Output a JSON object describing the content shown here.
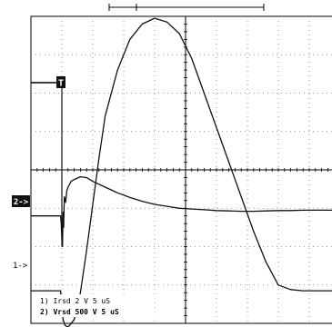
{
  "chart_data": {
    "type": "line",
    "title": "",
    "grid": true,
    "x_unit": "us",
    "x_per_div": 5,
    "x_range": [
      0,
      50
    ],
    "y_range_div": [
      -4,
      4
    ],
    "markers": {
      "trigger": "T",
      "channel_2": "2->",
      "channel_1": "1->"
    },
    "legend": [
      {
        "label": "1) Irsd  2  V    5 uS"
      },
      {
        "label": "2) Vrsd  500  V    5 uS"
      }
    ],
    "series": [
      {
        "name": "1) Irsd",
        "x": [
          0,
          4.8,
          4.9,
          5.0,
          5.2,
          5.5,
          6,
          7,
          8,
          9,
          10,
          11,
          12,
          14,
          16,
          18,
          20,
          22,
          24,
          26,
          28,
          30,
          32,
          34,
          36,
          38,
          40,
          42,
          44,
          46,
          48,
          50
        ],
        "y": [
          -3.15,
          -3.15,
          -3.4,
          -3.6,
          -3.9,
          -4.05,
          -4.1,
          -3.9,
          -3.2,
          -2.1,
          -0.9,
          0.3,
          1.4,
          2.6,
          3.4,
          3.8,
          3.95,
          3.85,
          3.55,
          2.9,
          2.0,
          1.1,
          0.2,
          -0.7,
          -1.6,
          -2.4,
          -3.0,
          -3.12,
          -3.15,
          -3.15,
          -3.15,
          -3.15
        ]
      },
      {
        "name": "2) Vrsd",
        "x": [
          0,
          4.8,
          4.9,
          5.0,
          5.1,
          5.2,
          5.3,
          5.4,
          5.6,
          5.8,
          6,
          6.5,
          7,
          8,
          9,
          10,
          12,
          14,
          16,
          18,
          20,
          22,
          24,
          26,
          28,
          30,
          32,
          34,
          36,
          38,
          40,
          42,
          44,
          46,
          48,
          50
        ],
        "y": [
          -1.2,
          -1.2,
          -1.4,
          -1.8,
          -2.0,
          -1.1,
          -1.5,
          -0.7,
          -0.85,
          -0.55,
          -0.45,
          -0.3,
          -0.25,
          -0.18,
          -0.2,
          -0.3,
          -0.45,
          -0.6,
          -0.72,
          -0.82,
          -0.9,
          -0.95,
          -1.0,
          -1.02,
          -1.04,
          -1.06,
          -1.07,
          -1.08,
          -1.08,
          -1.07,
          -1.06,
          -1.06,
          -1.05,
          -1.05,
          -1.05,
          -1.05
        ]
      }
    ]
  }
}
